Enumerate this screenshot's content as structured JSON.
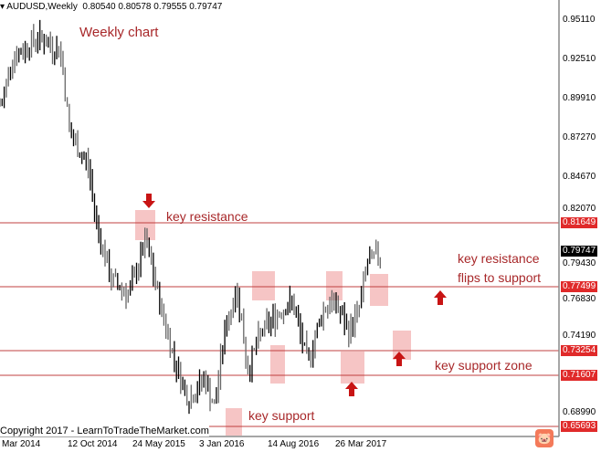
{
  "header": {
    "symbol_timeframe": "AUDUSD,Weekly",
    "ohlc": "0.80540 0.80578 0.79555 0.79747"
  },
  "annotations": {
    "title": "Weekly chart",
    "key_resistance": "key resistance",
    "flip_line1": "key resistance",
    "flip_line2": "flips to support",
    "support_zone": "key support zone",
    "key_support": "key support"
  },
  "copyright": "Copyright 2017 - LearnToTradeTheMarket.com",
  "watermark": "EAHub",
  "colors": {
    "annotation": "#a8282a",
    "level_line": "#c04040",
    "highlight": "#f4b6b6",
    "price_label": "#e02a2a",
    "arrow": "#c81414"
  },
  "price_axis_ticks": [
    "0.95110",
    "0.92510",
    "0.89910",
    "0.87270",
    "0.84670",
    "0.82070",
    "0.79430",
    "0.76830",
    "0.74190",
    "0.68990"
  ],
  "levels": [
    "0.81649",
    "0.77499",
    "0.73254",
    "0.71607",
    "0.65693"
  ],
  "current_price": "0.79747",
  "date_axis": [
    "Mar 2014",
    "12 Oct 2014",
    "24 May 2015",
    "3 Jan 2016",
    "14 Aug 2016",
    "26 Mar 2017"
  ],
  "chart_data": {
    "type": "candlestick",
    "approx_close_path": [
      [
        "2014-03-02",
        0.895
      ],
      [
        "2014-04-01",
        0.925
      ],
      [
        "2014-06-30",
        0.94
      ],
      [
        "2014-09-14",
        0.93
      ],
      [
        "2014-10-14",
        0.875
      ],
      [
        "2014-12-13",
        0.855
      ],
      [
        "2015-01-12",
        0.815
      ],
      [
        "2015-02-26",
        0.78
      ],
      [
        "2015-04-28",
        0.77
      ],
      [
        "2015-06-22",
        0.805
      ],
      [
        "2015-08-13",
        0.76
      ],
      [
        "2015-09-28",
        0.725
      ],
      [
        "2015-11-12",
        0.7
      ],
      [
        "2016-01-03",
        0.715
      ],
      [
        "2016-02-05",
        0.695
      ],
      [
        "2016-03-10",
        0.745
      ],
      [
        "2016-04-20",
        0.775
      ],
      [
        "2016-05-25",
        0.72
      ],
      [
        "2016-07-10",
        0.745
      ],
      [
        "2016-09-15",
        0.76
      ],
      [
        "2016-10-20",
        0.765
      ],
      [
        "2016-12-10",
        0.725
      ],
      [
        "2017-01-30",
        0.76
      ],
      [
        "2017-03-10",
        0.765
      ],
      [
        "2017-04-25",
        0.745
      ],
      [
        "2017-05-30",
        0.76
      ],
      [
        "2017-06-25",
        0.79
      ],
      [
        "2017-08-10",
        0.797
      ]
    ]
  }
}
